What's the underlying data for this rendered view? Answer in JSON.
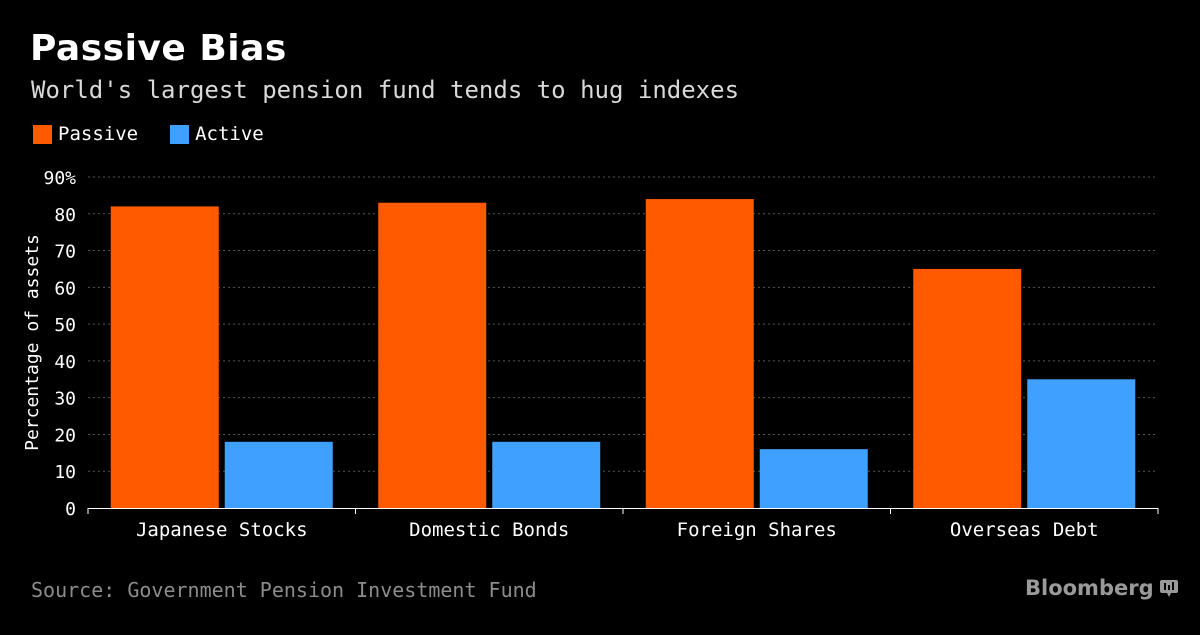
{
  "title": "Passive Bias",
  "subtitle": "World's largest pension fund tends to hug indexes",
  "source": "Source: Government Pension Investment Fund",
  "brand": "Bloomberg",
  "brand_icon": "bloomberg-terminal-icon",
  "colors": {
    "background": "#000000",
    "passive": "#ff5a00",
    "active": "#40a0ff",
    "grid": "#555555",
    "text": "#ffffff"
  },
  "chart_data": {
    "type": "bar",
    "categories": [
      "Japanese Stocks",
      "Domestic Bonds",
      "Foreign Shares",
      "Overseas Debt"
    ],
    "series": [
      {
        "name": "Passive",
        "values": [
          82,
          83,
          84,
          65
        ]
      },
      {
        "name": "Active",
        "values": [
          18,
          18,
          16,
          35
        ]
      }
    ],
    "ylabel": "Percentage of assets",
    "xlabel": "",
    "ylim": [
      0,
      90
    ],
    "yticks": [
      0,
      10,
      20,
      30,
      40,
      50,
      60,
      70,
      80,
      90
    ],
    "ytick_labels": [
      "0",
      "10",
      "20",
      "30",
      "40",
      "50",
      "60",
      "70",
      "80",
      "90%"
    ],
    "grid": true,
    "legend_position": "top-left"
  }
}
